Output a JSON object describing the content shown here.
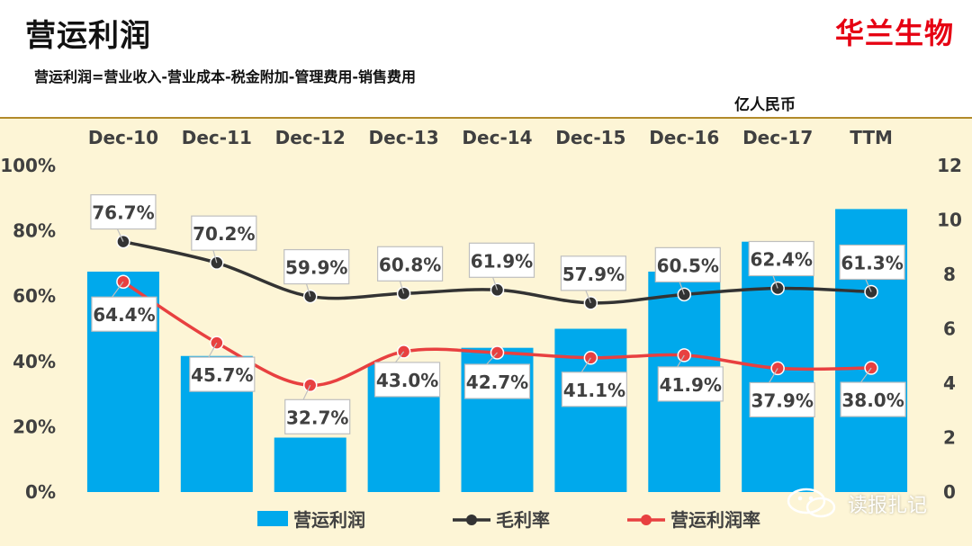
{
  "header": {
    "title": "营运利润",
    "brand": "华兰生物",
    "formula": "营运利润=营业收入-营业成本-税金附加-管理费用-销售费用"
  },
  "watermark": {
    "text": "读报扎记"
  },
  "colors": {
    "bar": "#00a9ec",
    "gross_line": "#333333",
    "op_line": "#e84040",
    "brand": "#e60012"
  },
  "chart_data": {
    "type": "bar",
    "categories": [
      "Dec-10",
      "Dec-11",
      "Dec-12",
      "Dec-13",
      "Dec-14",
      "Dec-15",
      "Dec-16",
      "Dec-17",
      "TTM"
    ],
    "right_axis_unit": "亿人民币",
    "left_axis": {
      "min": 0,
      "max": 100,
      "ticks": [
        "0%",
        "20%",
        "40%",
        "60%",
        "80%",
        "100%"
      ]
    },
    "right_axis": {
      "min": 0,
      "max": 12,
      "ticks": [
        "0",
        "2",
        "4",
        "6",
        "8",
        "10",
        "12"
      ]
    },
    "series": [
      {
        "name": "营运利润",
        "type": "bar",
        "axis": "right",
        "values": [
          8.1,
          5.0,
          2.0,
          4.7,
          5.3,
          6.0,
          8.1,
          9.2,
          10.4
        ]
      },
      {
        "name": "毛利率",
        "type": "line",
        "axis": "left",
        "values": [
          76.7,
          70.2,
          59.9,
          60.8,
          61.9,
          57.9,
          60.5,
          62.4,
          61.3
        ],
        "labels": [
          "76.7%",
          "70.2%",
          "59.9%",
          "60.8%",
          "61.9%",
          "57.9%",
          "60.5%",
          "62.4%",
          "61.3%"
        ]
      },
      {
        "name": "营运利润率",
        "type": "line",
        "axis": "left",
        "values": [
          64.4,
          45.7,
          32.7,
          43.0,
          42.7,
          41.1,
          41.9,
          37.9,
          38.0
        ],
        "labels": [
          "64.4%",
          "45.7%",
          "32.7%",
          "43.0%",
          "42.7%",
          "41.1%",
          "41.9%",
          "37.9%",
          "38.0%"
        ]
      }
    ],
    "legend": [
      "营运利润",
      "毛利率",
      "营运利润率"
    ],
    "legend_position": "bottom"
  }
}
